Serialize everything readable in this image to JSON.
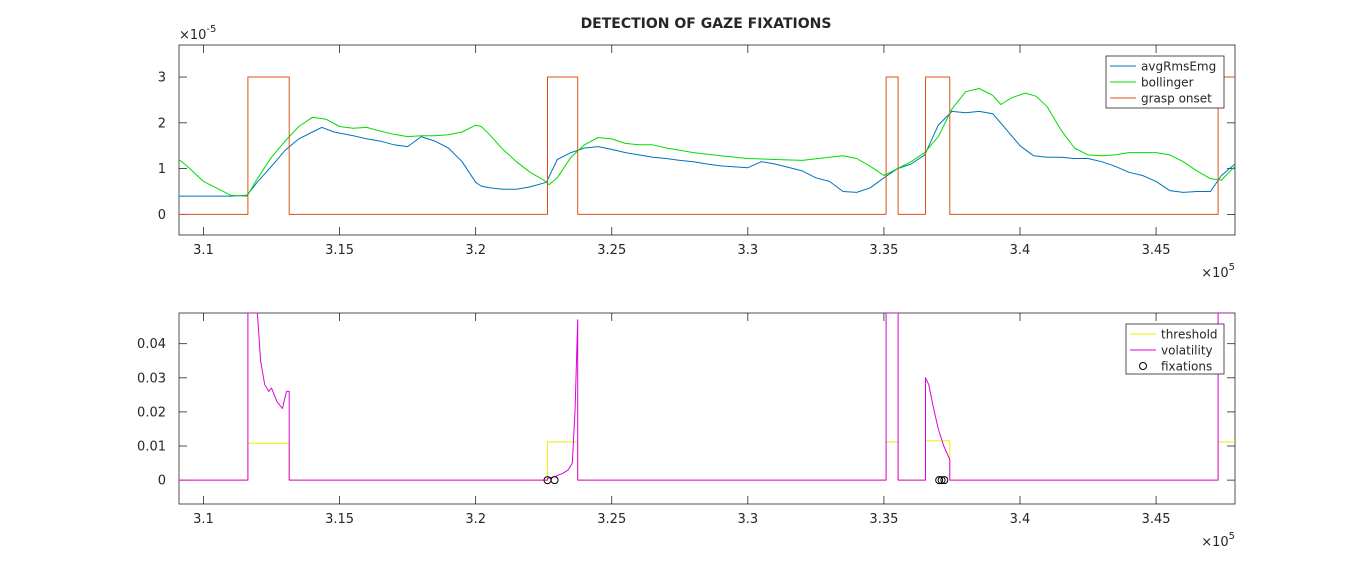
{
  "figure": {
    "title": "DETECTION OF GAZE FIXATIONS"
  },
  "chart_data": [
    {
      "type": "line",
      "title": "DETECTION OF GAZE FIXATIONS",
      "xlabel": "",
      "ylabel": "",
      "x_exponent_label": "10",
      "x_exponent_power": "5",
      "y_exponent_label": "10",
      "y_exponent_power": "-5",
      "xlim": [
        3.091,
        3.479
      ],
      "ylim": [
        -0.45,
        3.7
      ],
      "xticks": [
        3.1,
        3.15,
        3.2,
        3.25,
        3.3,
        3.35,
        3.4,
        3.45
      ],
      "xtick_labels": [
        "3.1",
        "3.15",
        "3.2",
        "3.25",
        "3.3",
        "3.35",
        "3.4",
        "3.45"
      ],
      "yticks": [
        0,
        1,
        2,
        3
      ],
      "ytick_labels": [
        "0",
        "1",
        "2",
        "3"
      ],
      "grid": false,
      "legend_position": "top-right",
      "series": [
        {
          "name": "avgRmsEmg",
          "color": "#0072BD",
          "x": [
            3.091,
            3.1,
            3.11,
            3.116,
            3.12,
            3.125,
            3.13,
            3.135,
            3.14,
            3.1435,
            3.148,
            3.155,
            3.16,
            3.165,
            3.17,
            3.175,
            3.18,
            3.185,
            3.19,
            3.195,
            3.2,
            3.202,
            3.205,
            3.21,
            3.215,
            3.22,
            3.226,
            3.23,
            3.235,
            3.24,
            3.245,
            3.25,
            3.255,
            3.26,
            3.265,
            3.27,
            3.275,
            3.28,
            3.285,
            3.29,
            3.3,
            3.305,
            3.31,
            3.32,
            3.325,
            3.33,
            3.335,
            3.34,
            3.345,
            3.35,
            3.355,
            3.36,
            3.365,
            3.37,
            3.375,
            3.38,
            3.385,
            3.39,
            3.395,
            3.4,
            3.405,
            3.41,
            3.415,
            3.42,
            3.425,
            3.43,
            3.435,
            3.44,
            3.445,
            3.45,
            3.455,
            3.46,
            3.465,
            3.47,
            3.474,
            3.479
          ],
          "y": [
            0.4,
            0.4,
            0.4,
            0.42,
            0.72,
            1.05,
            1.4,
            1.65,
            1.8,
            1.9,
            1.8,
            1.72,
            1.65,
            1.6,
            1.52,
            1.48,
            1.7,
            1.6,
            1.45,
            1.15,
            0.7,
            0.62,
            0.58,
            0.55,
            0.55,
            0.6,
            0.7,
            1.2,
            1.35,
            1.45,
            1.48,
            1.42,
            1.35,
            1.3,
            1.25,
            1.22,
            1.18,
            1.15,
            1.1,
            1.06,
            1.02,
            1.15,
            1.1,
            0.95,
            0.8,
            0.72,
            0.5,
            0.48,
            0.58,
            0.8,
            1.0,
            1.1,
            1.3,
            1.95,
            2.25,
            2.22,
            2.25,
            2.2,
            1.85,
            1.5,
            1.28,
            1.25,
            1.25,
            1.22,
            1.22,
            1.15,
            1.05,
            0.92,
            0.85,
            0.72,
            0.52,
            0.48,
            0.5,
            0.5,
            0.85,
            1.1
          ]
        },
        {
          "name": "bollinger",
          "color": "#00DD00",
          "x": [
            3.091,
            3.094,
            3.1,
            3.11,
            3.116,
            3.12,
            3.125,
            3.13,
            3.135,
            3.14,
            3.145,
            3.15,
            3.155,
            3.16,
            3.165,
            3.17,
            3.175,
            3.18,
            3.185,
            3.19,
            3.195,
            3.2,
            3.202,
            3.205,
            3.21,
            3.215,
            3.22,
            3.225,
            3.227,
            3.23,
            3.235,
            3.24,
            3.245,
            3.25,
            3.255,
            3.26,
            3.265,
            3.27,
            3.275,
            3.28,
            3.29,
            3.3,
            3.31,
            3.32,
            3.33,
            3.335,
            3.34,
            3.345,
            3.35,
            3.355,
            3.36,
            3.365,
            3.37,
            3.375,
            3.38,
            3.385,
            3.39,
            3.393,
            3.397,
            3.402,
            3.406,
            3.41,
            3.415,
            3.42,
            3.425,
            3.43,
            3.435,
            3.44,
            3.445,
            3.45,
            3.455,
            3.46,
            3.465,
            3.47,
            3.474,
            3.479
          ],
          "y": [
            1.2,
            1.05,
            0.72,
            0.42,
            0.4,
            0.8,
            1.25,
            1.6,
            1.92,
            2.12,
            2.08,
            1.92,
            1.88,
            1.9,
            1.82,
            1.75,
            1.7,
            1.72,
            1.72,
            1.74,
            1.8,
            1.95,
            1.92,
            1.75,
            1.42,
            1.15,
            0.92,
            0.75,
            0.65,
            0.8,
            1.25,
            1.52,
            1.68,
            1.65,
            1.55,
            1.52,
            1.52,
            1.45,
            1.4,
            1.35,
            1.28,
            1.22,
            1.2,
            1.18,
            1.25,
            1.28,
            1.22,
            1.05,
            0.85,
            1.0,
            1.15,
            1.35,
            1.7,
            2.3,
            2.68,
            2.75,
            2.6,
            2.4,
            2.55,
            2.65,
            2.58,
            2.35,
            1.85,
            1.45,
            1.3,
            1.28,
            1.3,
            1.35,
            1.35,
            1.35,
            1.3,
            1.15,
            0.95,
            0.78,
            0.75,
            1.05
          ]
        },
        {
          "name": "grasp onset",
          "color": "#D95319",
          "x": [
            3.091,
            3.1163,
            3.1163,
            3.1315,
            3.1315,
            3.2264,
            3.2264,
            3.2375,
            3.2375,
            3.3508,
            3.3508,
            3.3552,
            3.3552,
            3.3653,
            3.3653,
            3.3742,
            3.3742,
            3.4728,
            3.4728,
            3.479
          ],
          "y": [
            0,
            0,
            3,
            3,
            0,
            0,
            3,
            3,
            0,
            0,
            3,
            3,
            0,
            0,
            3,
            3,
            0,
            0,
            3,
            3
          ]
        }
      ]
    },
    {
      "type": "line",
      "title": "",
      "xlabel": "",
      "ylabel": "",
      "x_exponent_label": "10",
      "x_exponent_power": "5",
      "xlim": [
        3.091,
        3.479
      ],
      "ylim": [
        -0.007,
        0.049
      ],
      "xticks": [
        3.1,
        3.15,
        3.2,
        3.25,
        3.3,
        3.35,
        3.4,
        3.45
      ],
      "xtick_labels": [
        "3.1",
        "3.15",
        "3.2",
        "3.25",
        "3.3",
        "3.35",
        "3.4",
        "3.45"
      ],
      "yticks": [
        0,
        0.01,
        0.02,
        0.03,
        0.04
      ],
      "ytick_labels": [
        "0",
        "0.01",
        "0.02",
        "0.03",
        "0.04"
      ],
      "grid": false,
      "legend_position": "top-right",
      "series": [
        {
          "name": "threshold",
          "color": "#EEEE00",
          "x": [
            3.091,
            3.1163,
            3.1163,
            3.1315,
            3.1315,
            3.2264,
            3.2264,
            3.2375,
            3.2375,
            3.3508,
            3.3508,
            3.3552,
            3.3552,
            3.3653,
            3.3653,
            3.3742,
            3.3742,
            3.4728,
            3.4728,
            3.479
          ],
          "y": [
            0,
            0,
            0.0108,
            0.0108,
            0,
            0,
            0.0112,
            0.0112,
            0,
            0,
            0.0112,
            0.0112,
            0,
            0,
            0.0115,
            0.0115,
            0,
            0,
            0.0112,
            0.0112
          ]
        },
        {
          "name": "volatility",
          "color": "#DD00DD",
          "x": [
            3.091,
            3.1163,
            3.1163,
            3.1198,
            3.121,
            3.1225,
            3.124,
            3.125,
            3.127,
            3.129,
            3.1305,
            3.1315,
            3.1315,
            3.2264,
            3.2264,
            3.229,
            3.232,
            3.234,
            3.2355,
            3.2365,
            3.2375,
            3.2375,
            3.3508,
            3.3508,
            3.3552,
            3.3552,
            3.3653,
            3.3653,
            3.3665,
            3.368,
            3.37,
            3.372,
            3.3742,
            3.3742,
            3.4728,
            3.4728,
            3.479
          ],
          "y": [
            0,
            0,
            0.049,
            0.049,
            0.035,
            0.028,
            0.026,
            0.027,
            0.023,
            0.021,
            0.026,
            0.026,
            0,
            0,
            0.0005,
            0.001,
            0.002,
            0.003,
            0.005,
            0.02,
            0.047,
            0,
            0,
            0.049,
            0.049,
            0,
            0,
            0.03,
            0.028,
            0.022,
            0.015,
            0.01,
            0.006,
            0,
            0,
            0.049,
            0.049
          ]
        },
        {
          "name": "fixations",
          "color": "#000000",
          "marker": "circle",
          "x": [
            3.2264,
            3.229,
            3.3703,
            3.3712,
            3.3722
          ],
          "y": [
            0,
            0,
            0,
            0,
            0
          ]
        }
      ]
    }
  ]
}
